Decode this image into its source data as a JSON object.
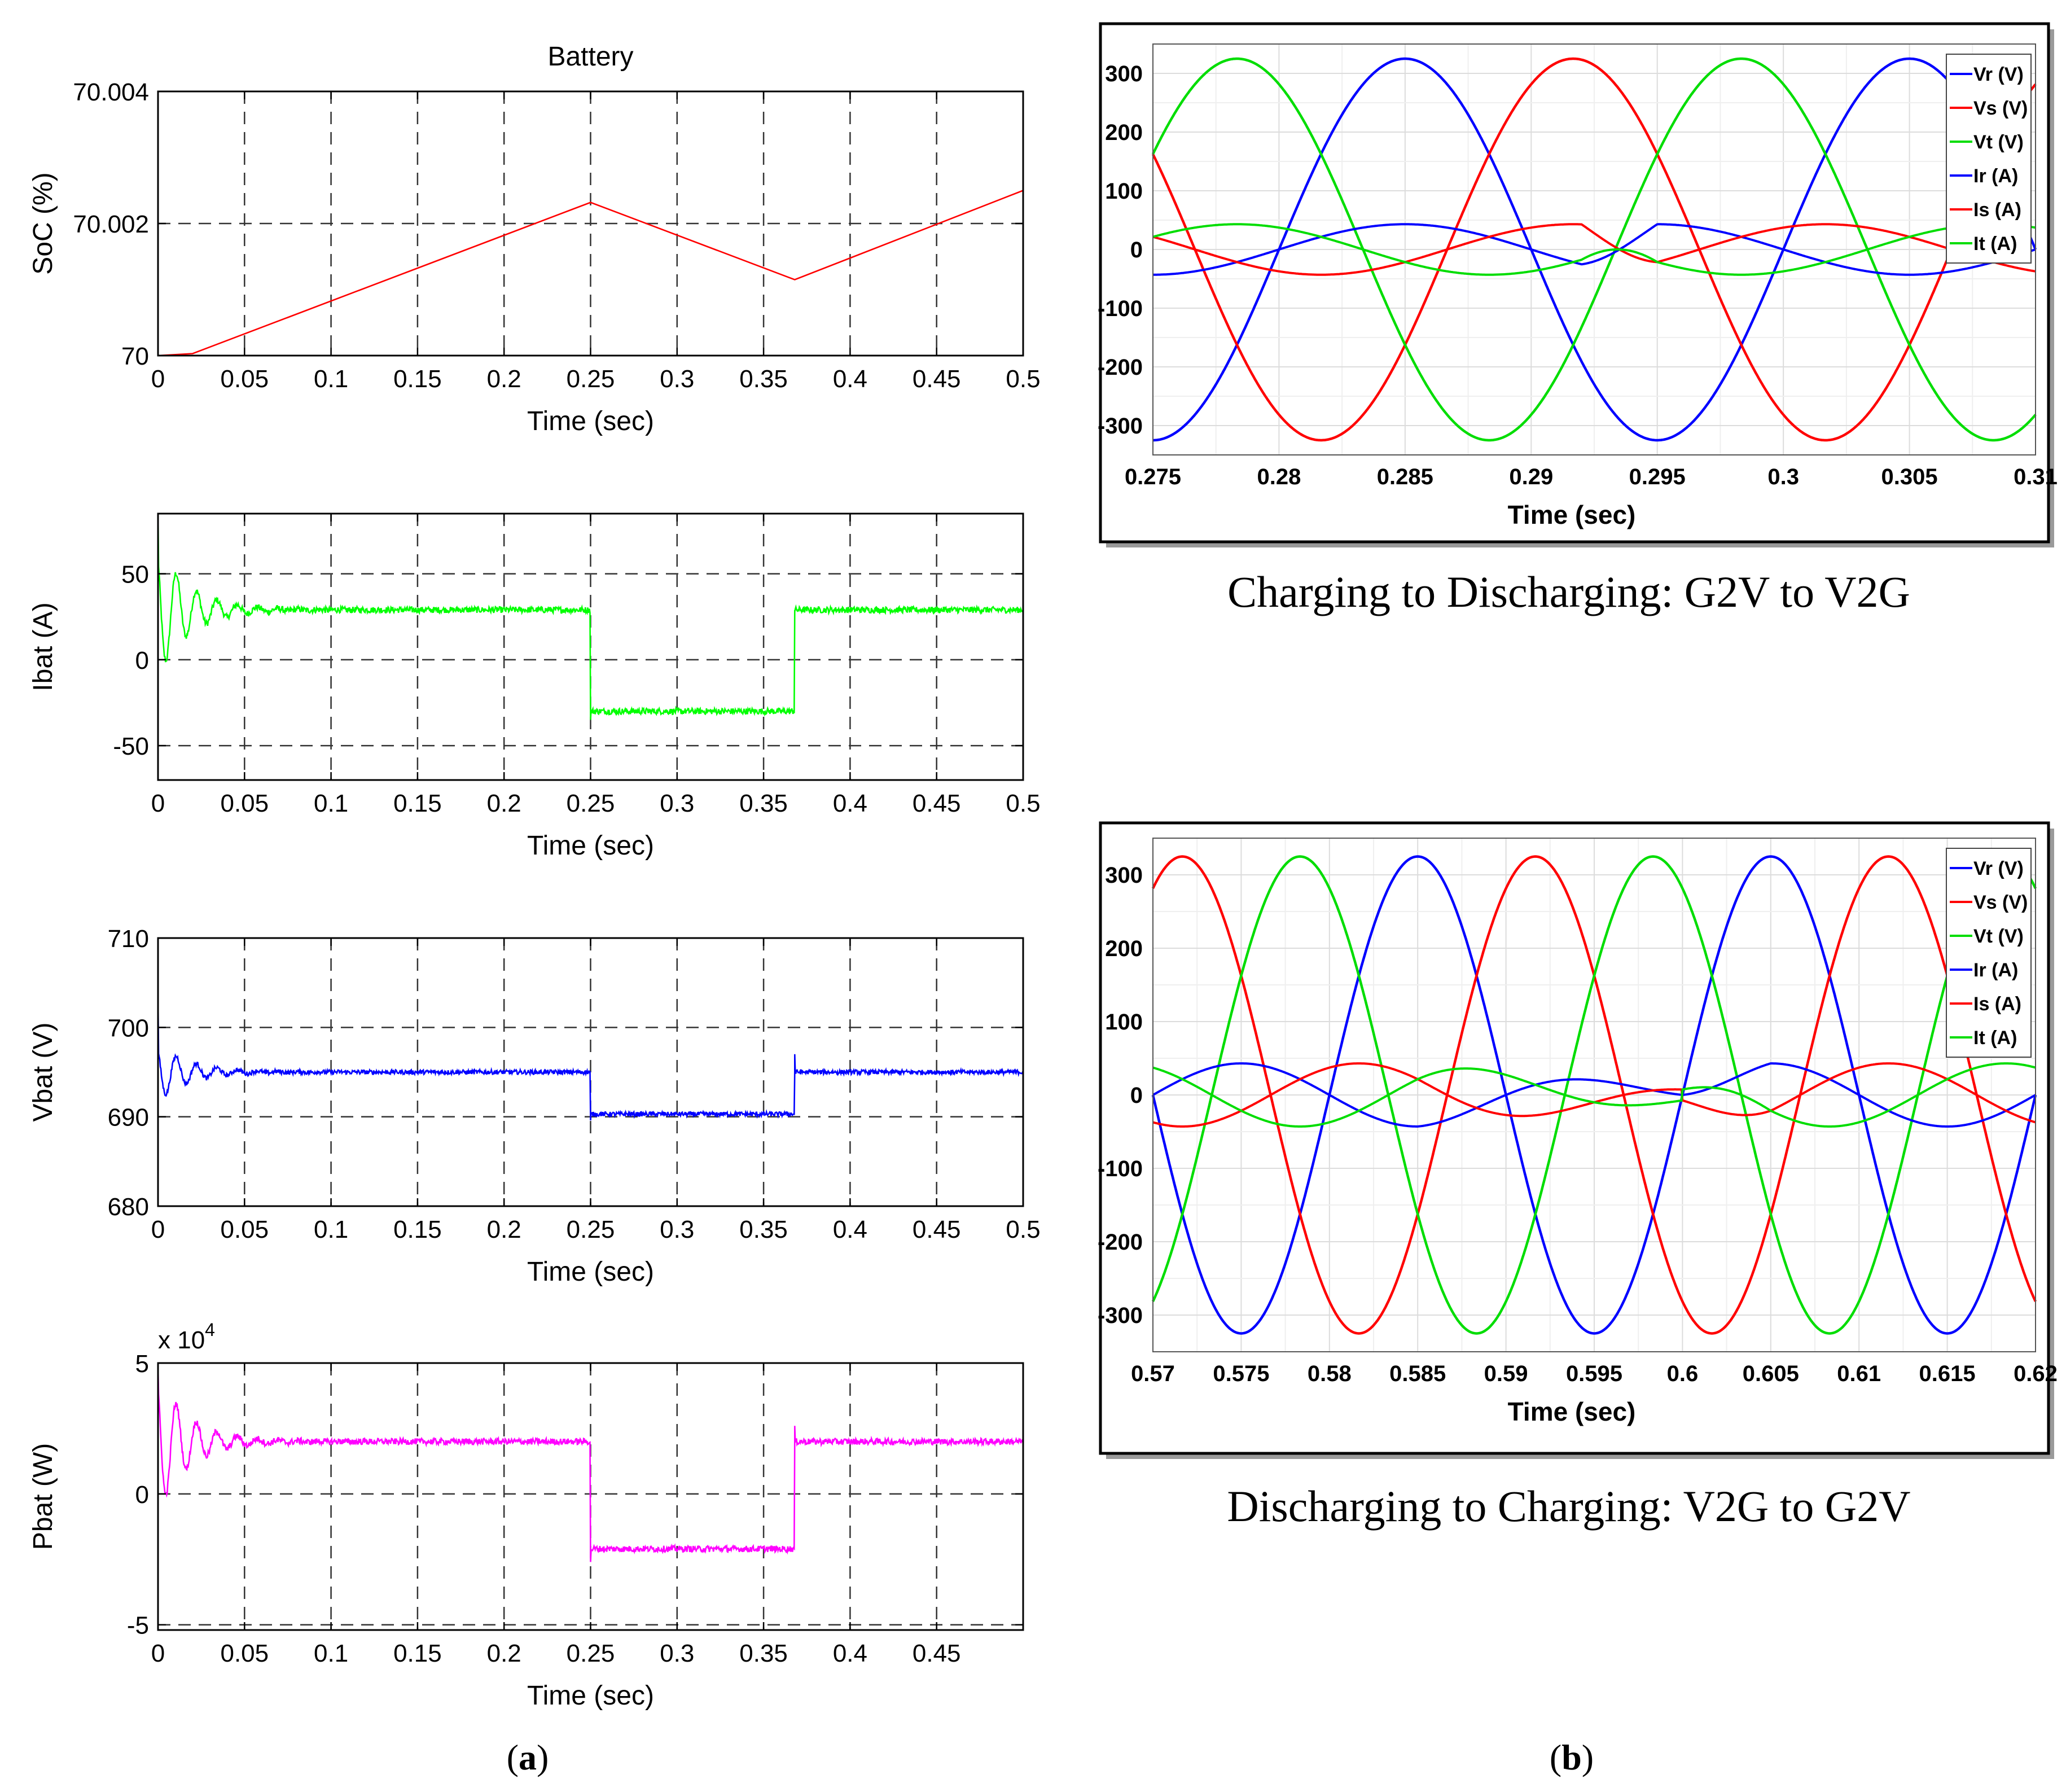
{
  "chart_data": [
    {
      "id": "soc",
      "type": "line",
      "title": "Battery",
      "xlabel": "Time (sec)",
      "ylabel": "SoC (%)",
      "xlim": [
        0,
        0.5
      ],
      "ylim": [
        70,
        70.004
      ],
      "xticks": [
        "0",
        "0.05",
        "0.1",
        "0.15",
        "0.2",
        "0.25",
        "0.3",
        "0.35",
        "0.4",
        "0.45",
        "0.5"
      ],
      "yticks": [
        "70",
        "70.002",
        "70.004"
      ],
      "series": [
        {
          "name": "SoC",
          "color": "#ff0000",
          "x": [
            0,
            0.02,
            0.25,
            0.368,
            0.5
          ],
          "y": [
            70,
            70.00003,
            70.00232,
            70.00115,
            70.0025
          ]
        }
      ]
    },
    {
      "id": "ibat",
      "type": "line",
      "xlabel": "Time (sec)",
      "ylabel": "Ibat (A)",
      "xlim": [
        0,
        0.5
      ],
      "ylim": [
        -70,
        85
      ],
      "xticks": [
        "0",
        "0.05",
        "0.1",
        "0.15",
        "0.2",
        "0.25",
        "0.3",
        "0.35",
        "0.4",
        "0.45",
        "0.5"
      ],
      "yticks": [
        "-50",
        "0",
        "50"
      ],
      "series": [
        {
          "name": "Ibat",
          "color": "#00ff00",
          "steady_charge": 29,
          "steady_discharge": -30,
          "switch_times": [
            0.25,
            0.368
          ]
        }
      ]
    },
    {
      "id": "vbat",
      "type": "line",
      "xlabel": "Time (sec)",
      "ylabel": "Vbat (V)",
      "xlim": [
        0,
        0.5
      ],
      "ylim": [
        680,
        710
      ],
      "xticks": [
        "0",
        "0.05",
        "0.1",
        "0.15",
        "0.2",
        "0.25",
        "0.3",
        "0.35",
        "0.4",
        "0.45",
        "0.5"
      ],
      "yticks": [
        "680",
        "690",
        "700",
        "710"
      ],
      "series": [
        {
          "name": "Vbat",
          "color": "#0000ff",
          "steady_charge": 695,
          "steady_discharge": 690.3,
          "switch_times": [
            0.25,
            0.368
          ]
        }
      ]
    },
    {
      "id": "pbat",
      "type": "line",
      "xlabel": "Time (sec)",
      "ylabel": "Pbat (W)",
      "exponent": "x 10",
      "exponent_power": "4",
      "xlim": [
        0,
        0.5
      ],
      "ylim": [
        -5.2,
        5
      ],
      "xticks": [
        "0",
        "0.05",
        "0.1",
        "0.15",
        "0.2",
        "0.25",
        "0.3",
        "0.35",
        "0.4",
        "0.45"
      ],
      "yticks": [
        "-5",
        "0",
        "5"
      ],
      "series": [
        {
          "name": "Pbat",
          "color": "#ff00ff",
          "steady_charge": 2.0,
          "steady_discharge": -2.1,
          "switch_times": [
            0.25,
            0.368
          ]
        }
      ]
    },
    {
      "id": "g2v_v2g",
      "type": "line",
      "xlabel": "Time (sec)",
      "xlim": [
        0.275,
        0.31
      ],
      "ylim": [
        -350,
        350
      ],
      "xticks": [
        "0.275",
        "0.28",
        "0.285",
        "0.29",
        "0.295",
        "0.3",
        "0.305",
        "0.31"
      ],
      "yticks": [
        "300",
        "200",
        "100",
        "0",
        "-100",
        "-200",
        "-300"
      ],
      "legend_position": "top-right",
      "series": [
        {
          "name": "Vr (V)",
          "color": "#0000ff",
          "amplitude": 325,
          "phase_deg": 0
        },
        {
          "name": "Vs (V)",
          "color": "#ff0000",
          "amplitude": 325,
          "phase_deg": -120
        },
        {
          "name": "Vt (V)",
          "color": "#00dd00",
          "amplitude": 325,
          "phase_deg": 120
        },
        {
          "name": "Ir (A)",
          "color": "#0000ff",
          "amplitude": 43,
          "switch_time": 0.2935
        },
        {
          "name": "Is (A)",
          "color": "#ff0000",
          "amplitude": 43,
          "switch_time": 0.2935
        },
        {
          "name": "It (A)",
          "color": "#00dd00",
          "amplitude": 43,
          "switch_time": 0.2935
        }
      ]
    },
    {
      "id": "v2g_g2v",
      "type": "line",
      "xlabel": "Time (sec)",
      "xlim": [
        0.57,
        0.62
      ],
      "ylim": [
        -350,
        350
      ],
      "xticks": [
        "0.57",
        "0.575",
        "0.58",
        "0.585",
        "0.59",
        "0.595",
        "0.6",
        "0.605",
        "0.61",
        "0.615",
        "0.62"
      ],
      "yticks": [
        "300",
        "200",
        "100",
        "0",
        "-100",
        "-200",
        "-300"
      ],
      "legend_position": "top-right",
      "series": [
        {
          "name": "Vr (V)",
          "color": "#0000ff",
          "amplitude": 325,
          "phase_deg": 0
        },
        {
          "name": "Vs (V)",
          "color": "#ff0000",
          "amplitude": 325,
          "phase_deg": -120
        },
        {
          "name": "Vt (V)",
          "color": "#00dd00",
          "amplitude": 325,
          "phase_deg": 120
        },
        {
          "name": "Ir (A)",
          "color": "#0000ff",
          "amplitude": 43,
          "switch_time": 0.6
        },
        {
          "name": "Is (A)",
          "color": "#ff0000",
          "amplitude": 43,
          "switch_time": 0.6
        },
        {
          "name": "It (A)",
          "color": "#00dd00",
          "amplitude": 43,
          "switch_time": 0.6
        }
      ]
    }
  ],
  "captions": {
    "top_right": "Charging to Discharging: G2V to V2G",
    "bottom_right": "Discharging to Charging: V2G to G2V",
    "panel_a_open": "(",
    "panel_a_letter": "a",
    "panel_a_close": ")",
    "panel_b_open": "(",
    "panel_b_letter": "b",
    "panel_b_close": ")"
  }
}
